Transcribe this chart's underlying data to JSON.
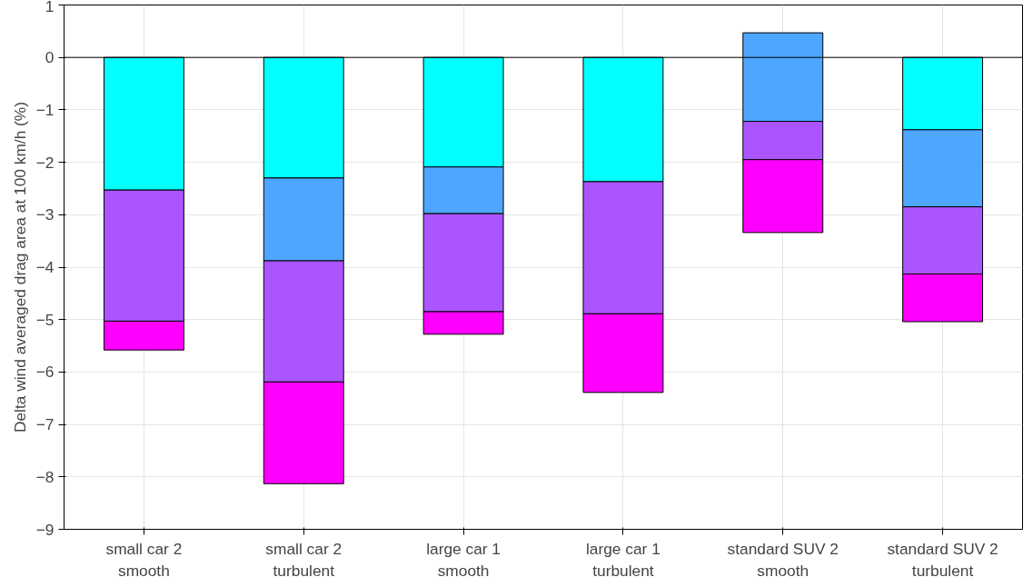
{
  "chart_data": {
    "type": "bar",
    "stacked": true,
    "ylabel": "Delta wind averaged drag area at 100 km/h (%)",
    "categories": [
      "small car 2\nsmooth",
      "small car 2\nturbulent",
      "large car 1\nsmooth",
      "large car 1\nturbulent",
      "standard SUV 2\nsmooth",
      "standard SUV 2\nturbulent"
    ],
    "series": [
      {
        "color": "#00ffff",
        "values": [
          -2.53,
          -2.3,
          -2.09,
          -2.37,
          null,
          -1.38
        ]
      },
      {
        "color": "#4da6ff",
        "values": [
          null,
          -1.58,
          -0.89,
          null,
          -1.69,
          -1.47
        ],
        "base": [
          null,
          null,
          null,
          null,
          0.47,
          null
        ]
      },
      {
        "color": "#aa55ff",
        "values": [
          -2.5,
          -2.31,
          -1.87,
          -2.52,
          -0.73,
          -1.28
        ]
      },
      {
        "color": "#ff00ff",
        "values": [
          -0.55,
          -1.94,
          -0.43,
          -1.5,
          -1.39,
          -0.91
        ]
      }
    ],
    "ylim": [
      -9,
      1
    ],
    "yticks": [
      -9,
      -8,
      -7,
      -6,
      -5,
      -4,
      -3,
      -2,
      -1,
      0,
      1
    ],
    "grid": true,
    "ref_lines": [
      {
        "axis": "y",
        "value": 0,
        "color": "#000000"
      }
    ]
  }
}
